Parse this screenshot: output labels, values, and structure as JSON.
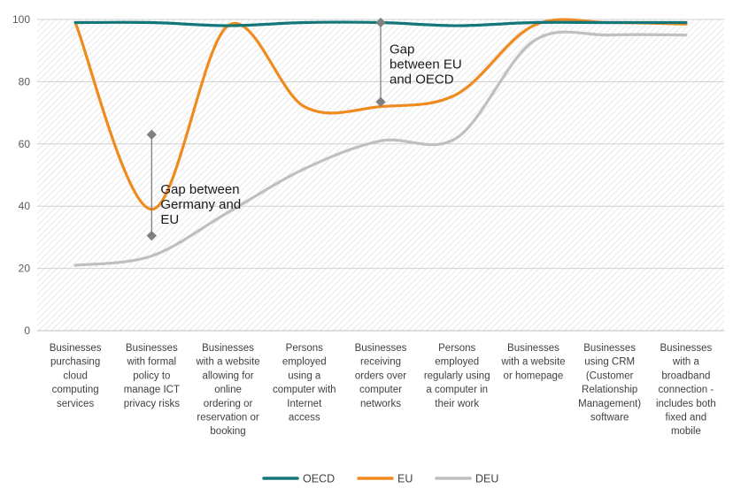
{
  "chart_data": {
    "type": "line",
    "title": "",
    "xlabel": "",
    "ylabel": "",
    "ylim": [
      0,
      100
    ],
    "yticks": [
      0,
      20,
      40,
      60,
      80,
      100
    ],
    "categories": [
      [
        "Businesses",
        "purchasing",
        "cloud",
        "computing",
        "services"
      ],
      [
        "Businesses",
        "with formal",
        "policy to",
        "manage ICT",
        "privacy risks"
      ],
      [
        "Businesses",
        "with a website",
        "allowing for",
        "online",
        "ordering or",
        "reservation or",
        "booking"
      ],
      [
        "Persons",
        "employed",
        "using a",
        "computer with",
        "Internet",
        "access"
      ],
      [
        "Businesses",
        "receiving",
        "orders over",
        "computer",
        "networks"
      ],
      [
        "Persons",
        "employed",
        "regularly using",
        "a computer in",
        "their work"
      ],
      [
        "Businesses",
        "with a website",
        "or homepage"
      ],
      [
        "Businesses",
        "using CRM",
        "(Customer",
        "Relationship",
        "Management)",
        "software"
      ],
      [
        "Businesses",
        "with a",
        "broadband",
        "connection -",
        "includes both",
        "fixed and",
        "mobile"
      ]
    ],
    "series": [
      {
        "name": "OECD",
        "color": "#13777a",
        "values": [
          99,
          99,
          98,
          99,
          99,
          98,
          99,
          99,
          99
        ]
      },
      {
        "name": "EU",
        "color": "#ef8a1e",
        "values": [
          99,
          39,
          98,
          72,
          72,
          76,
          98,
          99,
          98.5
        ]
      },
      {
        "name": "DEU",
        "color": "#bfbfbf",
        "values": [
          21,
          24,
          38,
          52,
          61,
          62,
          93,
          95,
          95
        ]
      }
    ],
    "gaps": [
      {
        "category_index": 1.5,
        "from": 30.5,
        "to": 63,
        "label": [
          "Gap between",
          "Germany and",
          "EU"
        ]
      },
      {
        "category_index": 4.5,
        "from": 73.5,
        "to": 99,
        "label": [
          "Gap",
          "between EU",
          "and OECD"
        ]
      }
    ],
    "legend": {
      "position": "bottom",
      "entries": [
        "OECD",
        "EU",
        "DEU"
      ]
    }
  }
}
